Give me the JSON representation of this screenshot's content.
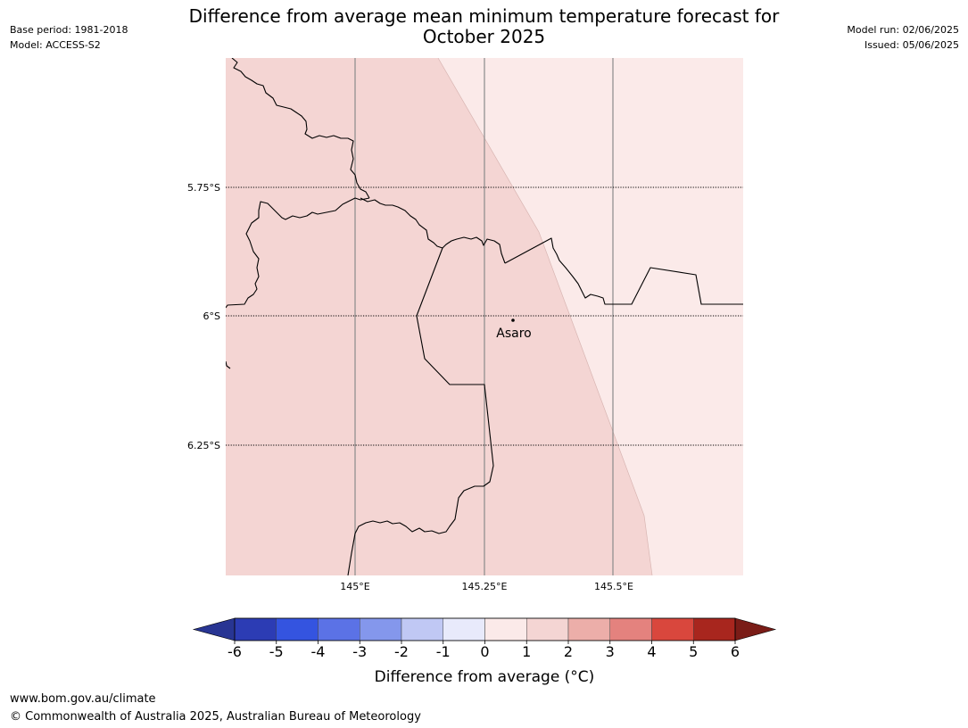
{
  "header": {
    "title_line1": "Difference from average mean minimum temperature forecast for",
    "title_line2": "October 2025",
    "base_period": "Base period: 1981-2018",
    "model": "Model: ACCESS-S2",
    "model_run": "Model run: 02/06/2025",
    "issued": "Issued: 05/06/2025"
  },
  "map": {
    "lat_labels": [
      "5.75°S",
      "6°S",
      "6.25°S"
    ],
    "lon_labels": [
      "145°E",
      "145.25°E",
      "145.5°E"
    ],
    "place": {
      "name": "Asaro"
    },
    "anomaly_zones": [
      {
        "category": "1 to 2",
        "color": "#f4d5d3"
      },
      {
        "category": "0 to 1",
        "color": "#fbeae9"
      }
    ]
  },
  "colorbar": {
    "ticks": [
      "-6",
      "-5",
      "-4",
      "-3",
      "-2",
      "-1",
      "0",
      "1",
      "2",
      "3",
      "4",
      "5",
      "6"
    ],
    "colors": [
      "#283593",
      "#2c3cb4",
      "#3454e0",
      "#5b72e6",
      "#8497ec",
      "#c0c8f4",
      "#e8eafb",
      "#fbeae9",
      "#f4d5d3",
      "#ecaea9",
      "#e4827e",
      "#d9473d",
      "#a8261e",
      "#7a1c17"
    ],
    "label": "Difference from average (°C)"
  },
  "footer": {
    "url": "www.bom.gov.au/climate",
    "copyright": "© Commonwealth of Australia 2025, Australian Bureau of Meteorology"
  }
}
